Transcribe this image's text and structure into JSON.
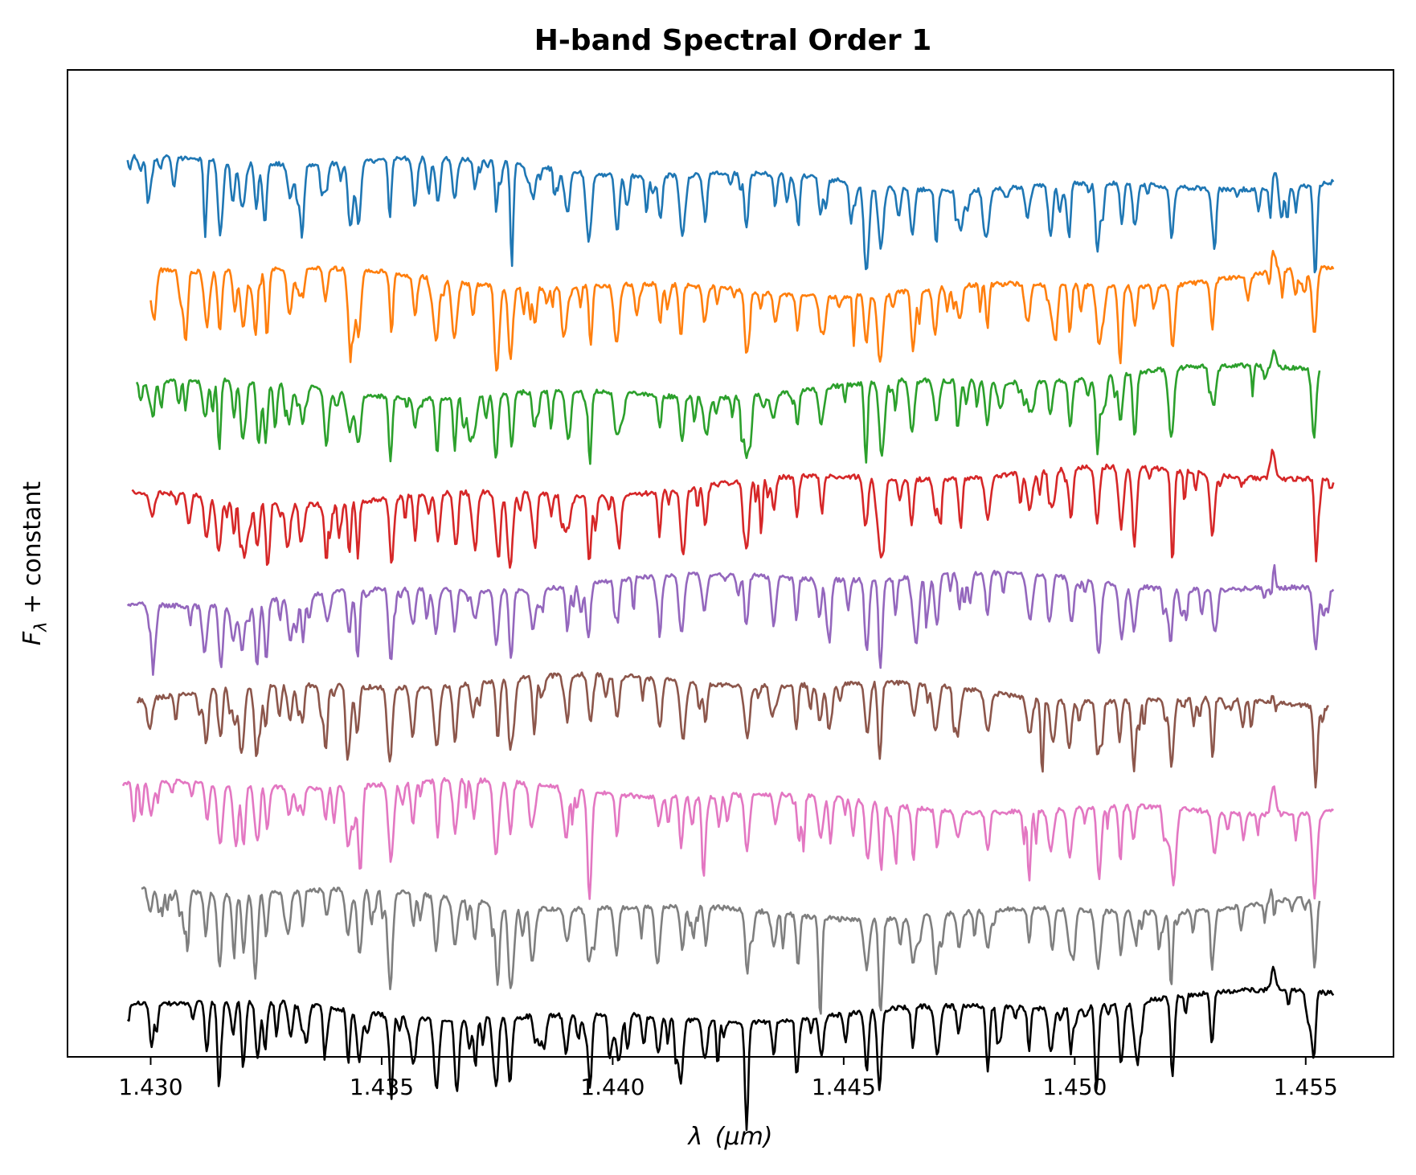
{
  "chart_data": {
    "type": "line",
    "title": "H-band Spectral Order 1",
    "xlabel": {
      "symbol": "λ",
      "unit": "(μm)"
    },
    "ylabel": {
      "symbol": "F",
      "subscript": "λ",
      "rest": " + constant"
    },
    "xlim": [
      1.4282,
      1.4569
    ],
    "ylim": [
      -0.5,
      9.0
    ],
    "x_ticks": [
      {
        "value": 1.43,
        "label": "1.430"
      },
      {
        "value": 1.435,
        "label": "1.435"
      },
      {
        "value": 1.44,
        "label": "1.440"
      },
      {
        "value": 1.445,
        "label": "1.445"
      },
      {
        "value": 1.45,
        "label": "1.450"
      },
      {
        "value": 1.455,
        "label": "1.455"
      }
    ],
    "y_ticks_visible": false,
    "grid": false,
    "legend": "none",
    "features": {
      "lines": [
        {
          "x": 1.43,
          "depth": 0.3
        },
        {
          "x": 1.4312,
          "depth": 0.5
        },
        {
          "x": 1.4315,
          "depth": 0.65
        },
        {
          "x": 1.4318,
          "depth": 0.45
        },
        {
          "x": 1.432,
          "depth": 0.55
        },
        {
          "x": 1.4323,
          "depth": 0.6
        },
        {
          "x": 1.4325,
          "depth": 0.55
        },
        {
          "x": 1.433,
          "depth": 0.4
        },
        {
          "x": 1.4333,
          "depth": 0.35
        },
        {
          "x": 1.4338,
          "depth": 0.3
        },
        {
          "x": 1.4343,
          "depth": 0.5
        },
        {
          "x": 1.4345,
          "depth": 0.6
        },
        {
          "x": 1.4352,
          "depth": 0.7
        },
        {
          "x": 1.4357,
          "depth": 0.45
        },
        {
          "x": 1.4362,
          "depth": 0.6
        },
        {
          "x": 1.4366,
          "depth": 0.5
        },
        {
          "x": 1.437,
          "depth": 0.4
        },
        {
          "x": 1.4375,
          "depth": 0.65
        },
        {
          "x": 1.4378,
          "depth": 0.7
        },
        {
          "x": 1.4383,
          "depth": 0.35
        },
        {
          "x": 1.439,
          "depth": 0.4
        },
        {
          "x": 1.4395,
          "depth": 0.65
        },
        {
          "x": 1.4401,
          "depth": 0.5
        },
        {
          "x": 1.441,
          "depth": 0.4
        },
        {
          "x": 1.4415,
          "depth": 0.6
        },
        {
          "x": 1.442,
          "depth": 0.35
        },
        {
          "x": 1.4429,
          "depth": 0.6
        },
        {
          "x": 1.4435,
          "depth": 0.3
        },
        {
          "x": 1.444,
          "depth": 0.45
        },
        {
          "x": 1.4445,
          "depth": 0.35
        },
        {
          "x": 1.4455,
          "depth": 0.7
        },
        {
          "x": 1.4458,
          "depth": 0.75
        },
        {
          "x": 1.4465,
          "depth": 0.45
        },
        {
          "x": 1.447,
          "depth": 0.5
        },
        {
          "x": 1.4475,
          "depth": 0.35
        },
        {
          "x": 1.4481,
          "depth": 0.55
        },
        {
          "x": 1.449,
          "depth": 0.4
        },
        {
          "x": 1.4495,
          "depth": 0.45
        },
        {
          "x": 1.4499,
          "depth": 0.5
        },
        {
          "x": 1.4505,
          "depth": 0.65
        },
        {
          "x": 1.451,
          "depth": 0.55
        },
        {
          "x": 1.4513,
          "depth": 0.4
        },
        {
          "x": 1.4521,
          "depth": 0.7
        },
        {
          "x": 1.453,
          "depth": 0.45
        },
        {
          "x": 1.4543,
          "depth": -0.25
        },
        {
          "x": 1.4552,
          "depth": 0.7
        }
      ]
    },
    "series": [
      {
        "color": "#1f77b4",
        "offset": 8.0,
        "x_start": 1.4295,
        "x_end": 1.4556,
        "seed": 1
      },
      {
        "color": "#ff7f0e",
        "offset": 7.0,
        "x_start": 1.43,
        "x_end": 1.4556,
        "seed": 2
      },
      {
        "color": "#2ca02c",
        "offset": 6.0,
        "x_start": 1.4297,
        "x_end": 1.4553,
        "seed": 3
      },
      {
        "color": "#d62728",
        "offset": 5.0,
        "x_start": 1.4296,
        "x_end": 1.4556,
        "seed": 4
      },
      {
        "color": "#9467bd",
        "offset": 4.0,
        "x_start": 1.4295,
        "x_end": 1.4556,
        "seed": 5
      },
      {
        "color": "#8c564b",
        "offset": 3.0,
        "x_start": 1.4297,
        "x_end": 1.4555,
        "seed": 6
      },
      {
        "color": "#e377c2",
        "offset": 2.0,
        "x_start": 1.4294,
        "x_end": 1.4556,
        "seed": 7
      },
      {
        "color": "#7f7f7f",
        "offset": 1.0,
        "x_start": 1.4298,
        "x_end": 1.4553,
        "seed": 8
      },
      {
        "color": "#000000",
        "offset": 0.0,
        "x_start": 1.4295,
        "x_end": 1.4556,
        "seed": 9
      }
    ]
  }
}
